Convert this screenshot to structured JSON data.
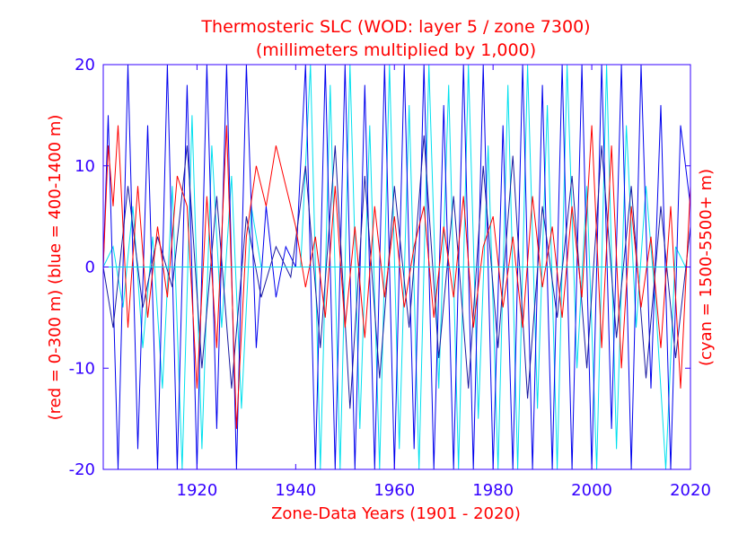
{
  "chart_data": {
    "type": "line",
    "title": "Thermosteric SLC (WOD: layer 5 / zone 7300)",
    "subtitle": "(millimeters multiplied by 1,000)",
    "xlabel": "Zone-Data Years (1901 - 2020)",
    "ylabel_left": "(red = 0-300 m)  (blue = 400-1400 m)",
    "ylabel_right": "(cyan = 1500-5500+ m)",
    "xlim": [
      1901,
      2020
    ],
    "ylim": [
      -20,
      20
    ],
    "x_ticks": [
      "1920",
      "1940",
      "1960",
      "1980",
      "2000",
      "2020"
    ],
    "y_ticks": [
      "-20",
      "-10",
      "0",
      "10",
      "20"
    ],
    "grid": false,
    "series_colors": {
      "red": "#ff0000",
      "blue": "#0000ee",
      "navy": "#1a1aa0",
      "cyan": "#00e0ee"
    },
    "series": [
      {
        "color_key": "cyan",
        "x": [
          1901,
          1903,
          1905,
          1907,
          1909,
          1911,
          1913,
          1915,
          1917,
          1919,
          1921,
          1923,
          1925,
          1927,
          1929,
          1931,
          1933,
          1935,
          1937,
          1939,
          1941,
          1943,
          1945,
          1947,
          1949,
          1951,
          1953,
          1955,
          1957,
          1959,
          1961,
          1963,
          1965,
          1967,
          1969,
          1971,
          1973,
          1975,
          1977,
          1979,
          1981,
          1983,
          1985,
          1987,
          1989,
          1991,
          1993,
          1995,
          1997,
          1999,
          2001,
          2003,
          2005,
          2007,
          2009,
          2011,
          2013,
          2015,
          2017,
          2019
        ],
        "values": [
          0,
          2,
          -4,
          6,
          -8,
          3,
          -12,
          8,
          -20,
          15,
          -18,
          12,
          -6,
          9,
          -14,
          6,
          0,
          0,
          0,
          0,
          0,
          20,
          -20,
          18,
          -20,
          20,
          -16,
          14,
          -20,
          20,
          -18,
          16,
          -20,
          20,
          -12,
          18,
          -20,
          20,
          -15,
          12,
          -20,
          18,
          -20,
          20,
          -14,
          16,
          -20,
          20,
          -10,
          8,
          -20,
          20,
          -18,
          14,
          -6,
          8,
          -4,
          -20,
          2,
          0
        ]
      },
      {
        "color_key": "blue",
        "x": [
          1901,
          1902,
          1904,
          1906,
          1908,
          1910,
          1912,
          1914,
          1916,
          1918,
          1920,
          1922,
          1924,
          1926,
          1928,
          1930,
          1932,
          1934,
          1936,
          1938,
          1940,
          1942,
          1944,
          1946,
          1948,
          1950,
          1952,
          1954,
          1956,
          1958,
          1960,
          1962,
          1964,
          1966,
          1968,
          1970,
          1972,
          1974,
          1976,
          1978,
          1980,
          1982,
          1984,
          1986,
          1988,
          1990,
          1992,
          1994,
          1996,
          1998,
          2000,
          2002,
          2004,
          2006,
          2008,
          2010,
          2012,
          2014,
          2016,
          2018,
          2020
        ],
        "values": [
          0,
          15,
          -20,
          20,
          -18,
          14,
          -20,
          20,
          -20,
          18,
          -20,
          20,
          -16,
          20,
          -20,
          20,
          -8,
          6,
          -3,
          2,
          0,
          20,
          -20,
          20,
          -20,
          20,
          -20,
          18,
          -20,
          20,
          -20,
          20,
          -18,
          20,
          -20,
          16,
          -20,
          20,
          -20,
          20,
          -20,
          14,
          -20,
          20,
          -20,
          18,
          -20,
          20,
          -20,
          20,
          -20,
          20,
          -16,
          20,
          -20,
          20,
          -12,
          16,
          -20,
          14,
          6
        ]
      },
      {
        "color_key": "navy",
        "x": [
          1901,
          1903,
          1906,
          1909,
          1912,
          1915,
          1918,
          1921,
          1924,
          1927,
          1930,
          1933,
          1936,
          1939,
          1942,
          1945,
          1948,
          1951,
          1954,
          1957,
          1960,
          1963,
          1966,
          1969,
          1972,
          1975,
          1978,
          1981,
          1984,
          1987,
          1990,
          1993,
          1996,
          1999,
          2002,
          2005,
          2008,
          2011,
          2014,
          2017,
          2020
        ],
        "values": [
          0,
          -6,
          8,
          -4,
          3,
          -2,
          12,
          -10,
          7,
          -12,
          5,
          -3,
          2,
          -1,
          10,
          -8,
          12,
          -14,
          9,
          -11,
          8,
          -6,
          13,
          -9,
          7,
          -12,
          10,
          -8,
          11,
          -13,
          6,
          -5,
          9,
          -10,
          12,
          -7,
          8,
          -11,
          6,
          -9,
          4
        ]
      },
      {
        "color_key": "red",
        "x": [
          1901,
          1902,
          1903,
          1904,
          1906,
          1908,
          1910,
          1912,
          1914,
          1916,
          1918,
          1920,
          1922,
          1924,
          1926,
          1928,
          1930,
          1932,
          1934,
          1936,
          1938,
          1940,
          1942,
          1944,
          1946,
          1948,
          1950,
          1952,
          1954,
          1956,
          1958,
          1960,
          1962,
          1964,
          1966,
          1968,
          1970,
          1972,
          1974,
          1976,
          1978,
          1980,
          1982,
          1984,
          1986,
          1988,
          1990,
          1992,
          1994,
          1996,
          1998,
          2000,
          2002,
          2004,
          2006,
          2008,
          2010,
          2012,
          2014,
          2016,
          2018,
          2020
        ],
        "values": [
          0,
          12,
          6,
          14,
          -6,
          8,
          -5,
          4,
          -3,
          9,
          6,
          -12,
          7,
          -8,
          14,
          -16,
          3,
          10,
          6,
          12,
          8,
          4,
          -2,
          3,
          -5,
          8,
          -6,
          4,
          -7,
          6,
          -3,
          5,
          -4,
          2,
          6,
          -5,
          4,
          -3,
          7,
          -6,
          2,
          5,
          -4,
          3,
          -6,
          7,
          -2,
          4,
          -5,
          6,
          -3,
          14,
          -8,
          12,
          -10,
          6,
          -4,
          3,
          -8,
          6,
          -12,
          8
        ]
      }
    ]
  }
}
